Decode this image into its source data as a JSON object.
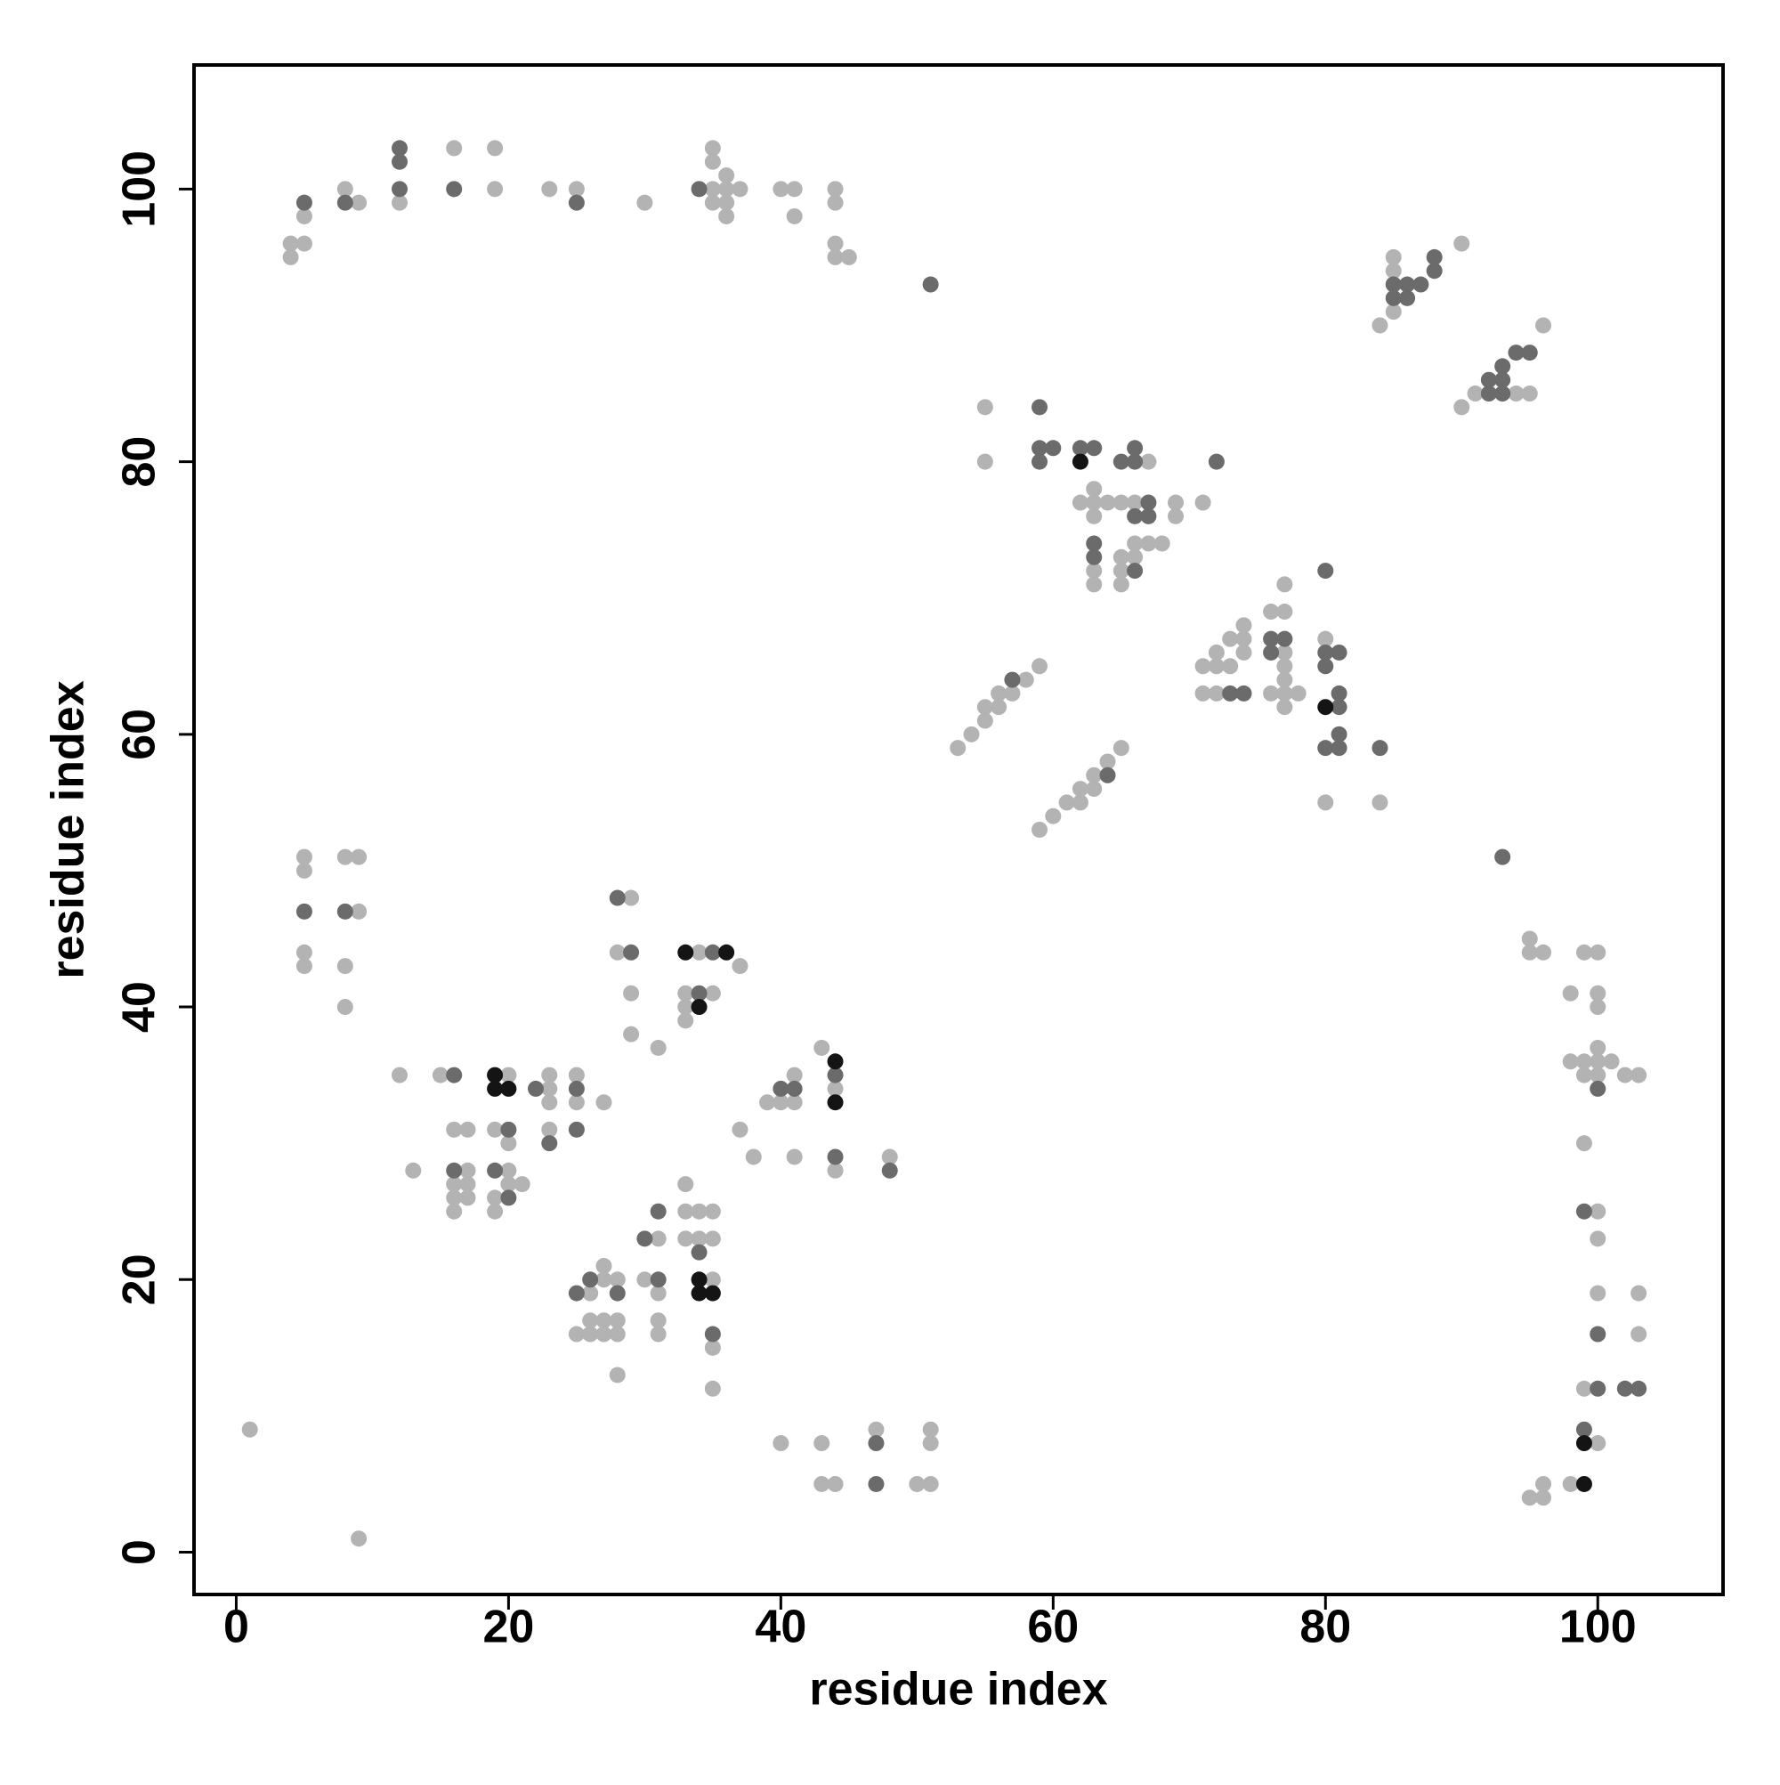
{
  "chart_data": {
    "type": "scatter",
    "xlabel": "residue index",
    "ylabel": "residue index",
    "xlim": [
      -3.1,
      109.2
    ],
    "ylim": [
      -3.1,
      109.1
    ],
    "xticks": [
      0,
      20,
      40,
      60,
      80,
      100
    ],
    "yticks": [
      0,
      20,
      40,
      60,
      80,
      100
    ],
    "series": [
      {
        "color": "#b3b3b3",
        "x": [
          4,
          4,
          5,
          5,
          8,
          9,
          12,
          16,
          19,
          19,
          23,
          25,
          30,
          35,
          35,
          35,
          35,
          36,
          36,
          36,
          36,
          37,
          40,
          41,
          41,
          44,
          44,
          44,
          44,
          45,
          85,
          85,
          85,
          84,
          90,
          90,
          91,
          94,
          95,
          96,
          55,
          55,
          67,
          62,
          63,
          63,
          63,
          64,
          65,
          66,
          69,
          69,
          71,
          63,
          63,
          65,
          65,
          65,
          66,
          66,
          67,
          68,
          71,
          71,
          72,
          72,
          72,
          73,
          73,
          74,
          74,
          74,
          76,
          76,
          77,
          77,
          77,
          77,
          77,
          77,
          77,
          78,
          80,
          80,
          84,
          53,
          54,
          55,
          55,
          56,
          56,
          57,
          58,
          59,
          59,
          60,
          61,
          62,
          62,
          63,
          63,
          64,
          65,
          95,
          95,
          96,
          98,
          98,
          99,
          99,
          99,
          100,
          100,
          100,
          100,
          100,
          100,
          101,
          102,
          103,
          99,
          100,
          100,
          100,
          103,
          103,
          99,
          100,
          98,
          96,
          95,
          96,
          1,
          9,
          5,
          5,
          5,
          5,
          8,
          9,
          9,
          8,
          8,
          12,
          13,
          15,
          16,
          17,
          17,
          16,
          17,
          16,
          17,
          16,
          20,
          19,
          20,
          20,
          20,
          21,
          19,
          19,
          23,
          23,
          23,
          23,
          25,
          25,
          27,
          29,
          28,
          29,
          29,
          31,
          34,
          37,
          33,
          35,
          33,
          33,
          37,
          38,
          39,
          40,
          41,
          41,
          41,
          43,
          44,
          44,
          48,
          26,
          25,
          26,
          26,
          27,
          27,
          27,
          27,
          28,
          28,
          28,
          28,
          30,
          31,
          31,
          31,
          31,
          33,
          33,
          33,
          34,
          34,
          35,
          35,
          35,
          35,
          35,
          40,
          43,
          43,
          44,
          47,
          50,
          51,
          51,
          51
        ],
        "values": [
          95,
          96,
          96,
          98,
          100,
          99,
          99,
          103,
          103,
          100,
          100,
          100,
          99,
          103,
          102,
          100,
          99,
          101,
          100,
          99,
          98,
          100,
          100,
          100,
          98,
          100,
          99,
          96,
          95,
          95,
          95,
          94,
          91,
          90,
          96,
          84,
          85,
          85,
          85,
          90,
          84,
          80,
          80,
          77,
          78,
          77,
          76,
          77,
          77,
          77,
          77,
          76,
          77,
          72,
          71,
          73,
          72,
          71,
          74,
          73,
          74,
          74,
          65,
          63,
          66,
          65,
          63,
          67,
          65,
          68,
          67,
          66,
          69,
          63,
          71,
          69,
          66,
          65,
          64,
          63,
          62,
          63,
          67,
          55,
          55,
          59,
          60,
          61,
          62,
          62,
          63,
          63,
          64,
          65,
          53,
          54,
          55,
          56,
          55,
          57,
          56,
          58,
          59,
          45,
          44,
          44,
          41,
          36,
          44,
          36,
          35,
          44,
          41,
          40,
          37,
          36,
          35,
          36,
          35,
          35,
          30,
          25,
          23,
          19,
          19,
          16,
          12,
          8,
          5,
          5,
          4,
          4,
          9,
          1,
          51,
          50,
          44,
          43,
          51,
          51,
          47,
          43,
          40,
          35,
          28,
          35,
          31,
          31,
          28,
          27,
          27,
          26,
          26,
          25,
          35,
          31,
          30,
          28,
          27,
          27,
          26,
          25,
          35,
          34,
          33,
          31,
          35,
          33,
          33,
          48,
          44,
          41,
          38,
          37,
          44,
          43,
          41,
          41,
          40,
          39,
          31,
          29,
          33,
          33,
          35,
          33,
          29,
          37,
          34,
          28,
          29,
          19,
          16,
          17,
          16,
          21,
          20,
          17,
          16,
          20,
          17,
          16,
          13,
          20,
          23,
          19,
          17,
          16,
          27,
          25,
          23,
          25,
          23,
          25,
          23,
          20,
          15,
          12,
          8,
          8,
          5,
          5,
          9,
          5,
          9,
          8,
          5
        ]
      },
      {
        "color": "#6b6b6b",
        "x": [
          5,
          8,
          12,
          12,
          12,
          16,
          25,
          34,
          51,
          85,
          85,
          86,
          86,
          87,
          88,
          88,
          92,
          92,
          93,
          93,
          93,
          94,
          95,
          59,
          59,
          59,
          60,
          62,
          63,
          65,
          66,
          66,
          72,
          66,
          67,
          67,
          63,
          63,
          66,
          80,
          73,
          74,
          76,
          76,
          77,
          80,
          80,
          80,
          81,
          81,
          81,
          81,
          81,
          84,
          57,
          64,
          93,
          100,
          99,
          100,
          100,
          102,
          103,
          99,
          5,
          8,
          16,
          16,
          20,
          19,
          20,
          22,
          23,
          25,
          25,
          28,
          29,
          35,
          34,
          40,
          41,
          44,
          44,
          48,
          25,
          26,
          28,
          30,
          31,
          31,
          34,
          35,
          47,
          47
        ],
        "values": [
          99,
          99,
          103,
          102,
          100,
          100,
          99,
          100,
          93,
          93,
          92,
          93,
          92,
          93,
          95,
          94,
          86,
          85,
          87,
          86,
          85,
          88,
          88,
          84,
          81,
          80,
          81,
          81,
          81,
          80,
          81,
          80,
          80,
          76,
          77,
          76,
          74,
          73,
          72,
          72,
          63,
          63,
          67,
          66,
          67,
          66,
          65,
          59,
          66,
          63,
          62,
          60,
          59,
          59,
          64,
          57,
          51,
          34,
          25,
          16,
          12,
          12,
          12,
          9,
          47,
          47,
          35,
          28,
          31,
          28,
          26,
          34,
          30,
          34,
          31,
          48,
          44,
          44,
          41,
          34,
          34,
          35,
          29,
          28,
          19,
          20,
          19,
          23,
          25,
          20,
          22,
          16,
          8,
          5
        ]
      },
      {
        "color": "#141414",
        "x": [
          62,
          80,
          99,
          99,
          19,
          19,
          20,
          33,
          36,
          34,
          44,
          44,
          34,
          34,
          35
        ],
        "values": [
          80,
          62,
          8,
          5,
          35,
          34,
          34,
          44,
          44,
          40,
          36,
          33,
          20,
          19,
          19
        ]
      }
    ]
  }
}
